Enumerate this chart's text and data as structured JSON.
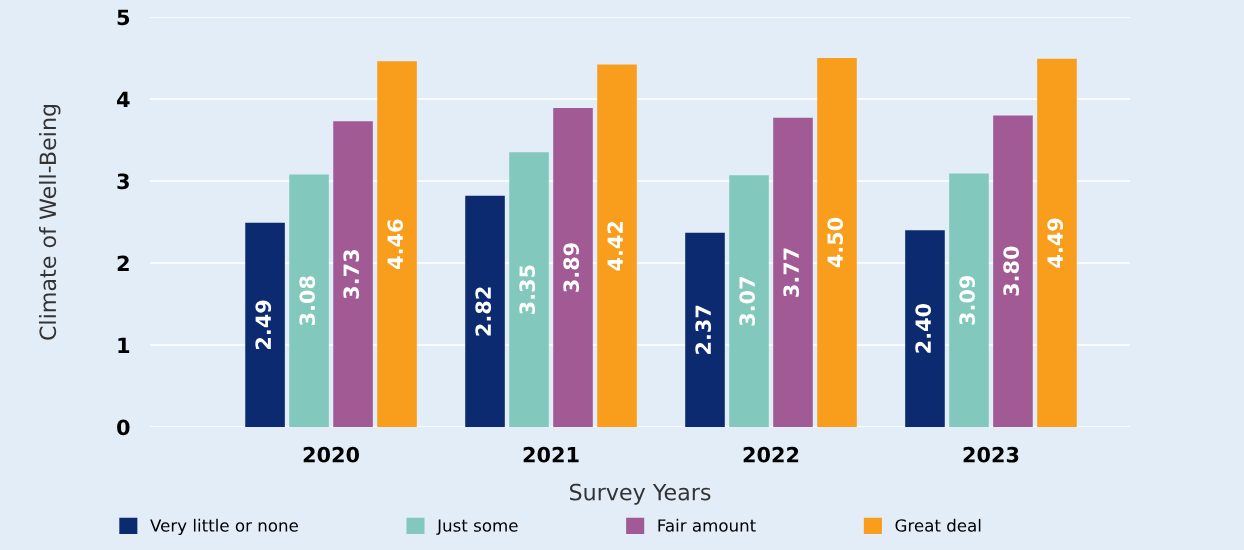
{
  "chart_data": {
    "type": "bar",
    "categories": [
      "2020",
      "2021",
      "2022",
      "2023"
    ],
    "xlabel": "Survey Years",
    "ylabel": "Climate of Well-Being",
    "series": [
      {
        "name": "Very little or none",
        "color": "#0b2a6f",
        "values": [
          2.49,
          2.82,
          2.37,
          2.4
        ],
        "value_labels": [
          "2.49",
          "2.82",
          "2.37",
          "2.40"
        ]
      },
      {
        "name": "Just some",
        "color": "#82c8bd",
        "values": [
          3.08,
          3.35,
          3.07,
          3.09
        ],
        "value_labels": [
          "3.08",
          "3.35",
          "3.07",
          "3.09"
        ]
      },
      {
        "name": "Fair amount",
        "color": "#a25a95",
        "values": [
          3.73,
          3.89,
          3.77,
          3.8
        ],
        "value_labels": [
          "3.73",
          "3.89",
          "3.77",
          "3.80"
        ]
      },
      {
        "name": "Great deal",
        "color": "#f99d1c",
        "values": [
          4.46,
          4.42,
          4.5,
          4.49
        ],
        "value_labels": [
          "4.46",
          "4.42",
          "4.50",
          "4.49"
        ]
      }
    ],
    "ylim": [
      0,
      5
    ],
    "yticks": [
      0,
      1,
      2,
      3,
      4,
      5
    ],
    "grid": "y",
    "legend": "bottom"
  }
}
